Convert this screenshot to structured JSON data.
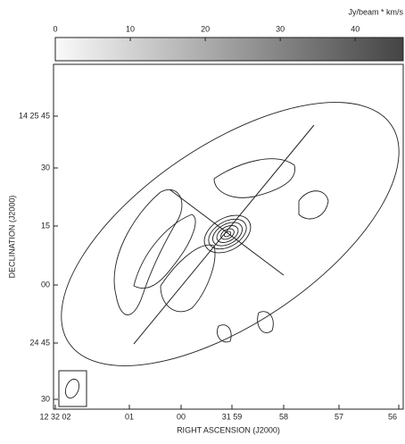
{
  "chart_data": {
    "type": "contour",
    "colorbar_label": "Jy/beam * km/s",
    "clim": [
      0,
      46.4
    ],
    "cticks": [
      0,
      10,
      20,
      30,
      40
    ],
    "xlabel": "RIGHT ASCENSION (J2000)",
    "ylabel": "DECLINATION (J2000)",
    "x_tick_labels": [
      "12 32 02",
      "01",
      "00",
      "31 59",
      "58",
      "57",
      "56"
    ],
    "y_tick_labels": [
      "14 25 45",
      "30",
      "15",
      "00",
      "24 45",
      "30"
    ]
  }
}
